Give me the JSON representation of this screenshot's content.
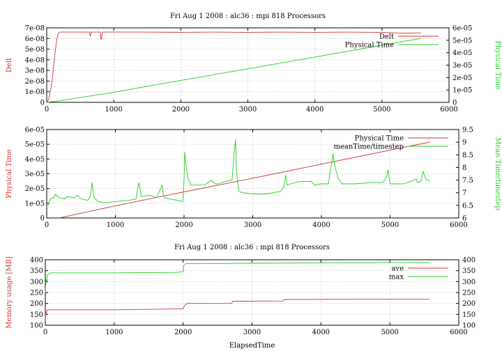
{
  "colors": {
    "red": "#cc3333",
    "green": "#22cc22"
  },
  "chart_data": [
    {
      "type": "line",
      "title": "Fri Aug 1 2008 : alc36 : mpi 818 Processors",
      "xlabel": "",
      "ylabel": "Delt",
      "y2label": "Physical Time",
      "xlim": [
        0,
        6000
      ],
      "ylim": [
        0,
        7e-08
      ],
      "y2lim": [
        0,
        6e-05
      ],
      "xticks": [
        "0",
        "1000",
        "2000",
        "3000",
        "4000",
        "5000",
        "6000"
      ],
      "yticks": [
        "0",
        "1e-08",
        "2e-08",
        "3e-08",
        "4e-08",
        "5e-08",
        "6e-08",
        "7e-08"
      ],
      "y2ticks": [
        "0",
        "1e-05",
        "2e-05",
        "3e-05",
        "4e-05",
        "5e-05",
        "6e-05"
      ],
      "legend_position": "top-right",
      "grid": true,
      "series": [
        {
          "name": "Delt",
          "axis": "y",
          "color": "#cc3333",
          "x": [
            0,
            30,
            60,
            90,
            120,
            150,
            170,
            190,
            640,
            650,
            660,
            800,
            810,
            820,
            830,
            1500,
            2000,
            2500,
            3000,
            3500,
            4000,
            4500,
            5000,
            5300,
            5580
          ],
          "y": [
            0,
            3e-09,
            1.2e-08,
            2.6e-08,
            4.4e-08,
            5.9e-08,
            6.4e-08,
            6.6e-08,
            6.6e-08,
            6.2e-08,
            6.6e-08,
            6.6e-08,
            5.9e-08,
            6.1e-08,
            6.6e-08,
            6.6e-08,
            6.58e-08,
            6.6e-08,
            6.58e-08,
            6.6e-08,
            6.58e-08,
            6.6e-08,
            6.58e-08,
            6.5e-08,
            6.52e-08
          ]
        },
        {
          "name": "Physical Time",
          "axis": "y2",
          "color": "#22cc22",
          "x": [
            0,
            200,
            1000,
            2000,
            3000,
            4000,
            5000,
            5580
          ],
          "y": [
            0,
            1.3e-06,
            8.2e-06,
            1.77e-05,
            2.7e-05,
            3.65e-05,
            4.6e-05,
            5.15e-05
          ]
        }
      ]
    },
    {
      "type": "line",
      "title": "",
      "xlabel": "",
      "ylabel": "Physical Time",
      "y2label": "Mean Time/timestep",
      "xlim": [
        0,
        6000
      ],
      "ylim": [
        0,
        6e-05
      ],
      "y2lim": [
        6,
        9.5
      ],
      "xticks": [
        "0",
        "1000",
        "2000",
        "3000",
        "4000",
        "5000",
        "6000"
      ],
      "yticks": [
        "0",
        "1e-05",
        "2e-05",
        "3e-05",
        "4e-05",
        "5e-05",
        "6e-05"
      ],
      "y2ticks": [
        "6",
        "6.5",
        "7",
        "7.5",
        "8",
        "8.5",
        "9",
        "9.5"
      ],
      "legend_position": "top-right",
      "grid": true,
      "series": [
        {
          "name": "Physical Time",
          "axis": "y",
          "color": "#cc3333",
          "x": [
            180,
            1000,
            2000,
            3000,
            4000,
            5000,
            5580
          ],
          "y": [
            0,
            8.2e-06,
            1.77e-05,
            2.7e-05,
            3.65e-05,
            4.6e-05,
            5.15e-05
          ]
        },
        {
          "name": "meanTime/timestep",
          "axis": "y2",
          "color": "#22cc22",
          "x": [
            20,
            50,
            100,
            130,
            160,
            200,
            260,
            300,
            400,
            450,
            500,
            600,
            640,
            660,
            690,
            750,
            850,
            1000,
            1200,
            1300,
            1340,
            1380,
            1500,
            1600,
            1680,
            1700,
            1720,
            1800,
            1900,
            1980,
            2000,
            2010,
            2025,
            2040,
            2060,
            2100,
            2200,
            2300,
            2400,
            2450,
            2500,
            2600,
            2700,
            2730,
            2750,
            2760,
            2780,
            2800,
            2850,
            3000,
            3200,
            3400,
            3450,
            3480,
            3500,
            3550,
            3700,
            3850,
            3900,
            4000,
            4100,
            4150,
            4170,
            4190,
            4210,
            4250,
            4300,
            4500,
            4700,
            4900,
            4950,
            4970,
            5000,
            5200,
            5350,
            5380,
            5400,
            5450,
            5480,
            5520,
            5580
          ],
          "y": [
            6.5,
            6.75,
            6.8,
            6.95,
            6.85,
            6.8,
            6.75,
            6.85,
            6.8,
            6.9,
            6.75,
            6.7,
            6.9,
            7.4,
            6.8,
            6.65,
            6.6,
            6.65,
            6.7,
            6.75,
            7.4,
            6.85,
            6.9,
            6.8,
            7.3,
            6.9,
            6.8,
            6.75,
            6.7,
            6.65,
            7.5,
            8.6,
            8.15,
            7.9,
            7.55,
            7.3,
            7.3,
            7.3,
            7.5,
            7.35,
            7.35,
            7.45,
            7.5,
            8.6,
            9.1,
            8.0,
            7.4,
            7.05,
            7.0,
            6.95,
            6.95,
            7.05,
            7.2,
            7.7,
            7.3,
            7.35,
            7.45,
            7.45,
            7.3,
            7.35,
            7.35,
            8.2,
            8.55,
            8.1,
            7.9,
            7.55,
            7.35,
            7.35,
            7.4,
            7.4,
            7.65,
            7.9,
            7.35,
            7.35,
            7.5,
            7.55,
            7.4,
            7.45,
            7.85,
            7.55,
            7.45
          ]
        }
      ]
    },
    {
      "type": "line",
      "title": "Fri Aug 1 2008 : alc36 : mpi 818 Processors",
      "xlabel": "ElapsedTime",
      "ylabel": "Memory usage [MB]",
      "y2label": "",
      "xlim": [
        0,
        6000
      ],
      "ylim": [
        100,
        400
      ],
      "y2lim": [
        100,
        400
      ],
      "xticks": [
        "0",
        "1000",
        "2000",
        "3000",
        "4000",
        "5000",
        "6000"
      ],
      "yticks": [
        "100",
        "150",
        "200",
        "250",
        "300",
        "350",
        "400"
      ],
      "y2ticks": [
        "100",
        "150",
        "200",
        "250",
        "300",
        "350",
        "400"
      ],
      "legend_position": "top-right",
      "grid": true,
      "series": [
        {
          "name": "ave",
          "axis": "y",
          "color": "#cc3333",
          "x": [
            0,
            5,
            12,
            25,
            60,
            1000,
            2000,
            2020,
            2060,
            2700,
            2720,
            3450,
            3470,
            4500,
            5580
          ],
          "y": [
            120,
            160,
            150,
            170,
            171,
            171,
            175,
            190,
            200,
            200,
            210,
            211,
            218,
            219,
            219
          ]
        },
        {
          "name": "max",
          "axis": "y",
          "color": "#22cc22",
          "x": [
            0,
            10,
            20,
            30,
            50,
            100,
            1000,
            1900,
            2000,
            2010,
            2040,
            3000,
            4000,
            5000,
            5580
          ],
          "y": [
            250,
            310,
            300,
            330,
            338,
            340,
            340,
            342,
            345,
            375,
            382,
            384,
            386,
            387,
            388
          ]
        }
      ]
    }
  ]
}
